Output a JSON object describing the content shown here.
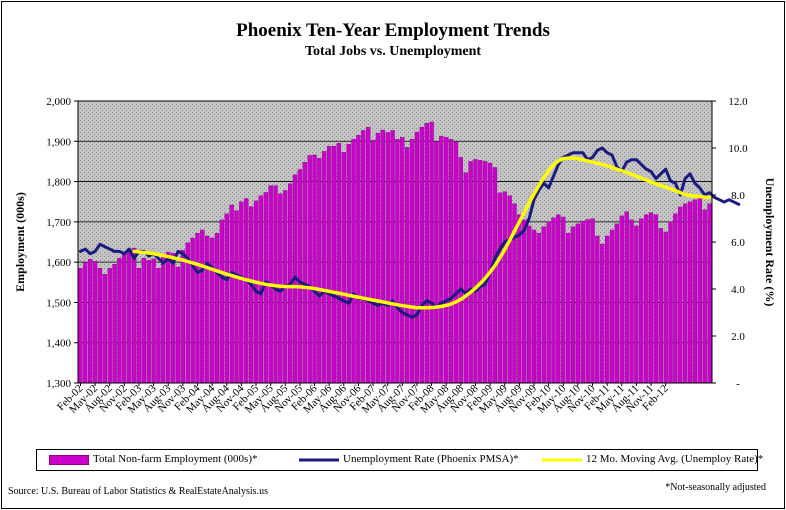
{
  "title": "Phoenix Ten-Year Employment Trends",
  "subtitle": "Total Jobs vs. Unemployment",
  "source": "Source: U.S. Bureau of Labor Statistics & RealEstateAnalysis.us",
  "note": "*Not-seasonally adjusted",
  "colors": {
    "employment": "#cc00cc",
    "unemployment": "#1a1a80",
    "moving_avg": "#ffff00",
    "plot_bg": "#c0c0c0"
  },
  "chart_data": {
    "type": "bar",
    "ylabel": "Employment (000s)",
    "y2label": "Unemployment Rate (%)",
    "ylim": [
      1300,
      2000
    ],
    "yticks": [
      "1,300",
      "1,400",
      "1,500",
      "1,600",
      "1,700",
      "1,800",
      "1,900",
      "2,000"
    ],
    "y2lim": [
      0,
      12
    ],
    "y2ticks": [
      "-",
      "2.0",
      "4.0",
      "6.0",
      "8.0",
      "10.0",
      "12.0"
    ],
    "xticks": [
      "Feb-02",
      "May-02",
      "Aug-02",
      "Nov-02",
      "Feb-03",
      "May-03",
      "Aug-03",
      "Nov-03",
      "Feb-04",
      "May-04",
      "Aug-04",
      "Nov-04",
      "Feb-05",
      "May-05",
      "Aug-05",
      "Nov-05",
      "Feb-06",
      "May-06",
      "Aug-06",
      "Nov-06",
      "Feb-07",
      "May-07",
      "Aug-07",
      "Nov-07",
      "Feb-08",
      "May-08",
      "Aug-08",
      "Nov-08",
      "Feb-09",
      "May-09",
      "Aug-09",
      "Nov-09",
      "Feb-10",
      "May-10",
      "Aug-10",
      "Nov-10",
      "Feb-11",
      "May-11",
      "Aug-11",
      "Nov-11",
      "Feb-12"
    ],
    "series": [
      {
        "name": "Total Non-farm Employment (000s)*",
        "type": "bar",
        "values": [
          1585,
          1600,
          1607,
          1602,
          1585,
          1570,
          1585,
          1595,
          1610,
          1620,
          1633,
          1635,
          1585,
          1610,
          1605,
          1608,
          1585,
          1620,
          1625,
          1622,
          1588,
          1630,
          1648,
          1660,
          1672,
          1680,
          1665,
          1660,
          1672,
          1705,
          1720,
          1742,
          1728,
          1750,
          1758,
          1738,
          1752,
          1765,
          1773,
          1790,
          1790,
          1770,
          1778,
          1795,
          1817,
          1830,
          1848,
          1865,
          1866,
          1858,
          1875,
          1888,
          1888,
          1895,
          1873,
          1893,
          1905,
          1915,
          1927,
          1935,
          1903,
          1920,
          1928,
          1922,
          1927,
          1905,
          1910,
          1885,
          1905,
          1923,
          1935,
          1945,
          1948,
          1900,
          1913,
          1910,
          1905,
          1898,
          1860,
          1822,
          1850,
          1855,
          1853,
          1850,
          1846,
          1835,
          1772,
          1775,
          1765,
          1745,
          1718,
          1705,
          1690,
          1680,
          1672,
          1688,
          1700,
          1710,
          1718,
          1712,
          1672,
          1688,
          1695,
          1702,
          1706,
          1708,
          1665,
          1645,
          1665,
          1680,
          1695,
          1715,
          1725,
          1705,
          1690,
          1708,
          1718,
          1723,
          1718,
          1684,
          1675,
          1700,
          1720,
          1737,
          1745,
          1750,
          1755,
          1760,
          1730,
          1745
        ]
      },
      {
        "name": "Unemployment Rate (Phoenix PMSA)*",
        "type": "line",
        "values": [
          5.6,
          5.7,
          5.5,
          5.6,
          5.9,
          5.8,
          5.7,
          5.6,
          5.6,
          5.5,
          5.7,
          5.3,
          5.6,
          5.6,
          5.4,
          5.5,
          5.3,
          5.1,
          5.3,
          5.1,
          5.6,
          5.5,
          5.3,
          5.0,
          4.7,
          4.8,
          5.1,
          4.9,
          4.7,
          4.5,
          4.4,
          4.7,
          4.6,
          4.5,
          4.4,
          4.2,
          3.9,
          3.8,
          4.3,
          4.2,
          4.0,
          3.9,
          4.1,
          4.2,
          4.5,
          4.3,
          4.2,
          4.1,
          3.9,
          3.7,
          3.9,
          3.8,
          3.7,
          3.6,
          3.5,
          3.4,
          3.8,
          3.6,
          3.6,
          3.5,
          3.4,
          3.3,
          3.4,
          3.3,
          3.5,
          3.2,
          3.0,
          2.9,
          2.8,
          2.9,
          3.3,
          3.5,
          3.4,
          3.2,
          3.4,
          3.5,
          3.6,
          3.8,
          4.0,
          3.8,
          4.0,
          3.9,
          4.1,
          4.2,
          4.7,
          5.3,
          5.7,
          6.0,
          6.1,
          6.2,
          6.3,
          6.5,
          7.0,
          7.8,
          8.2,
          8.5,
          8.3,
          8.8,
          9.3,
          9.6,
          9.7,
          9.8,
          9.8,
          9.8,
          9.5,
          9.6,
          9.9,
          10.0,
          9.8,
          9.7,
          9.2,
          9.0,
          9.4,
          9.5,
          9.5,
          9.3,
          9.1,
          9.0,
          8.7,
          8.9,
          9.1,
          8.6,
          8.5,
          8.0,
          8.7,
          8.9,
          8.5,
          8.3,
          8.0,
          8.1,
          7.9,
          7.8,
          7.7,
          7.8,
          7.7,
          7.6
        ]
      },
      {
        "name": "12 Mo. Moving Avg. (Unemploy Rate)*",
        "type": "line",
        "values": [
          null,
          null,
          null,
          null,
          null,
          null,
          null,
          null,
          null,
          null,
          null,
          5.6,
          5.58,
          5.55,
          5.53,
          5.5,
          5.46,
          5.42,
          5.38,
          5.33,
          5.28,
          5.23,
          5.17,
          5.11,
          5.05,
          4.98,
          4.91,
          4.84,
          4.77,
          4.7,
          4.63,
          4.57,
          4.51,
          4.45,
          4.39,
          4.34,
          4.29,
          4.24,
          4.2,
          4.17,
          4.14,
          4.12,
          4.1,
          4.1,
          4.1,
          4.09,
          4.07,
          4.05,
          4.02,
          3.98,
          3.94,
          3.9,
          3.86,
          3.82,
          3.78,
          3.73,
          3.69,
          3.65,
          3.61,
          3.57,
          3.53,
          3.49,
          3.45,
          3.41,
          3.37,
          3.33,
          3.29,
          3.26,
          3.23,
          3.2,
          3.2,
          3.2,
          3.21,
          3.23,
          3.26,
          3.3,
          3.36,
          3.45,
          3.56,
          3.7,
          3.86,
          4.04,
          4.24,
          4.46,
          4.72,
          5.0,
          5.32,
          5.68,
          6.06,
          6.46,
          6.86,
          7.26,
          7.66,
          8.04,
          8.4,
          8.74,
          9.04,
          9.28,
          9.45,
          9.55,
          9.57,
          9.57,
          9.55,
          9.5,
          9.45,
          9.4,
          9.35,
          9.3,
          9.24,
          9.17,
          9.1,
          9.03,
          8.96,
          8.88,
          8.8,
          8.72,
          8.64,
          8.56,
          8.48,
          8.4,
          8.33,
          8.26,
          8.19,
          8.1,
          8.02,
          7.98,
          7.95,
          7.93,
          7.91,
          7.9
        ]
      }
    ],
    "legend": "bottom",
    "grid": true
  }
}
